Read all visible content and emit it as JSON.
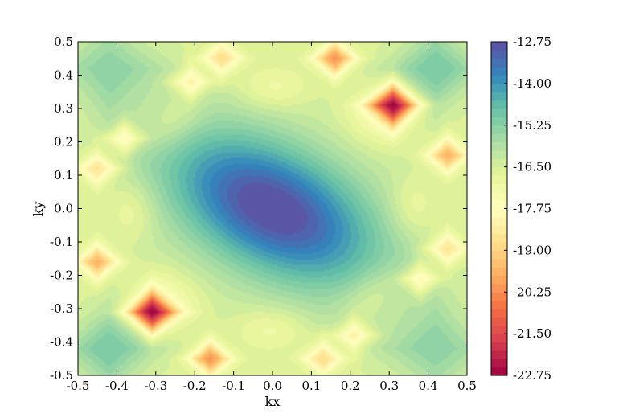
{
  "chart_data": {
    "type": "heatmap",
    "subtype": "filled-contour",
    "title": "",
    "xlabel": "kx",
    "ylabel": "ky",
    "xlim": [
      -0.5,
      0.5
    ],
    "ylim": [
      -0.5,
      0.5
    ],
    "x_ticks": [
      "-0.5",
      "-0.4",
      "-0.3",
      "-0.2",
      "-0.1",
      "0.0",
      "0.1",
      "0.2",
      "0.3",
      "0.4",
      "0.5"
    ],
    "y_ticks": [
      "-0.5",
      "-0.4",
      "-0.3",
      "-0.2",
      "-0.1",
      "0.0",
      "0.1",
      "0.2",
      "0.3",
      "0.4",
      "0.5"
    ],
    "colormap": "Spectral",
    "colorbar": {
      "range": [
        -22.75,
        -12.75
      ],
      "levels": 40,
      "ticks": [
        "-12.75",
        "-14.00",
        "-15.25",
        "-16.50",
        "-17.75",
        "-19.00",
        "-20.25",
        "-21.50",
        "-22.75"
      ],
      "tick_values": [
        -12.75,
        -14.0,
        -15.25,
        -16.5,
        -17.75,
        -19.0,
        -20.25,
        -21.5,
        -22.75
      ]
    },
    "field": {
      "background": -16.6,
      "features": [
        {
          "kind": "peak",
          "kx": 0.0,
          "ky": 0.0,
          "amplitude": 4.0,
          "major_sigma": 0.22,
          "minor_sigma": 0.13,
          "angle_deg": -35
        },
        {
          "kind": "dip",
          "kx": 0.31,
          "ky": 0.31,
          "amplitude": -6.0,
          "sigma": 0.035
        },
        {
          "kind": "dip",
          "kx": -0.31,
          "ky": -0.31,
          "amplitude": -6.0,
          "sigma": 0.035
        },
        {
          "kind": "dip",
          "kx": 0.16,
          "ky": 0.45,
          "amplitude": -3.5,
          "sigma": 0.03
        },
        {
          "kind": "dip",
          "kx": -0.16,
          "ky": -0.45,
          "amplitude": -3.5,
          "sigma": 0.03
        },
        {
          "kind": "dip",
          "kx": -0.13,
          "ky": 0.45,
          "amplitude": -2.2,
          "sigma": 0.03
        },
        {
          "kind": "dip",
          "kx": 0.13,
          "ky": -0.45,
          "amplitude": -2.2,
          "sigma": 0.03
        },
        {
          "kind": "dip",
          "kx": 0.45,
          "ky": 0.16,
          "amplitude": -3.0,
          "sigma": 0.03
        },
        {
          "kind": "dip",
          "kx": -0.45,
          "ky": -0.16,
          "amplitude": -3.0,
          "sigma": 0.03
        },
        {
          "kind": "dip",
          "kx": -0.45,
          "ky": 0.12,
          "amplitude": -2.2,
          "sigma": 0.03
        },
        {
          "kind": "dip",
          "kx": 0.45,
          "ky": -0.12,
          "amplitude": -2.2,
          "sigma": 0.03
        },
        {
          "kind": "dip",
          "kx": -0.21,
          "ky": 0.38,
          "amplitude": -1.8,
          "sigma": 0.028
        },
        {
          "kind": "dip",
          "kx": 0.21,
          "ky": -0.38,
          "amplitude": -1.8,
          "sigma": 0.028
        },
        {
          "kind": "dip",
          "kx": 0.38,
          "ky": -0.21,
          "amplitude": -1.8,
          "sigma": 0.028
        },
        {
          "kind": "dip",
          "kx": -0.38,
          "ky": 0.21,
          "amplitude": -1.8,
          "sigma": 0.028
        },
        {
          "kind": "ridge",
          "kx": -0.42,
          "ky": -0.42,
          "amplitude": 1.6,
          "sigma": 0.07
        },
        {
          "kind": "ridge",
          "kx": 0.42,
          "ky": 0.42,
          "amplitude": 1.6,
          "sigma": 0.07
        },
        {
          "kind": "ridge",
          "kx": -0.42,
          "ky": 0.42,
          "amplitude": 1.2,
          "sigma": 0.08
        },
        {
          "kind": "ridge",
          "kx": 0.42,
          "ky": -0.42,
          "amplitude": 1.2,
          "sigma": 0.08
        }
      ]
    }
  }
}
